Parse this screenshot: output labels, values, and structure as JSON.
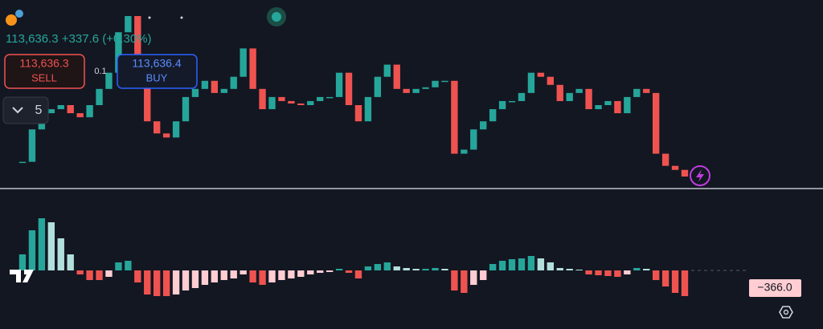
{
  "header": {
    "price_line": "113,636.3 +337.6 (+0.30%)"
  },
  "order": {
    "sell_price": "113,636.3",
    "sell_label": "SELL",
    "quantity": "0.1",
    "buy_price": "113,636.4",
    "buy_label": "BUY"
  },
  "interval": "5",
  "chart": {
    "closes": [
      113700,
      113840,
      113910,
      113927.5,
      113945,
      113910,
      113892.5,
      113945,
      114015,
      114085,
      114260,
      114330,
      114155,
      113875,
      113822.5,
      113805,
      113875,
      113980,
      114015,
      114050,
      113997.5,
      114015,
      114067.5,
      114190,
      114015,
      113927.5,
      113980,
      113962.5,
      113952,
      113945,
      113962.5,
      113980,
      113980,
      114085,
      113945,
      113875,
      113980,
      114067.5,
      114120,
      114015,
      113997.5,
      114015,
      114022,
      114050,
      114050,
      113735,
      113752.5,
      113840,
      113875,
      113927.5,
      113962.5,
      113962.5,
      113997.5,
      114085,
      114067.5,
      114032.5,
      113962.5,
      113997.5,
      114015,
      113927.5,
      113945,
      113962.5,
      113910,
      113980,
      114015,
      113997.5,
      113735,
      113682.5,
      113665,
      113636.3
    ]
  },
  "macd": {
    "histogram": [
      100,
      250,
      325,
      300,
      200,
      100,
      -25,
      -60,
      -60,
      -40,
      50,
      60,
      -75,
      -150,
      -160,
      -160,
      -150,
      -125,
      -110,
      -90,
      -75,
      -60,
      -50,
      -25,
      -75,
      -90,
      -75,
      -60,
      -50,
      -40,
      -25,
      -15,
      -10,
      10,
      -15,
      -50,
      25,
      40,
      50,
      25,
      15,
      10,
      10,
      15,
      10,
      -125,
      -140,
      -90,
      -60,
      40,
      60,
      70,
      75,
      90,
      75,
      50,
      15,
      10,
      5,
      -25,
      -30,
      -35,
      -40,
      -25,
      15,
      10,
      -60,
      -100,
      -140,
      -160
    ],
    "value_label": "−366.0"
  }
}
